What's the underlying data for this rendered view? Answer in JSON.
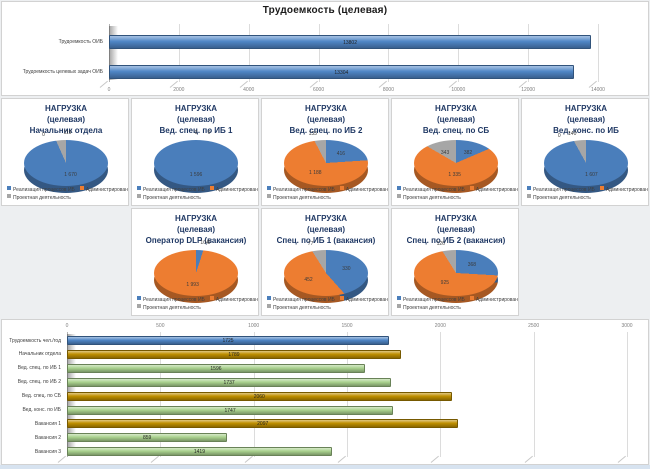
{
  "chart_data": [
    {
      "id": "target-labor",
      "type": "bar",
      "orientation": "horizontal",
      "title": "Трудоемкость (целевая)",
      "categories": [
        "Трудоемкость ОИБ",
        "Трудоемкость целевых задач ОИБ"
      ],
      "values": [
        13802,
        13304
      ],
      "xlim": [
        0,
        14000
      ],
      "xticks": [
        0,
        2000,
        4000,
        6000,
        8000,
        10000,
        12000,
        14000
      ],
      "bar_color": "#4f86c6",
      "grid": true,
      "legend_position": "none"
    },
    {
      "id": "workload-pies",
      "type": "pie",
      "heading_line1": "НАГРУЗКА",
      "heading_line2": "(целевая)",
      "legend": [
        "Реализация процессов ИБ",
        "Администрирование СЗИ",
        "Проектная деятельность"
      ],
      "slice_colors": [
        "#4a7ebb",
        "#ed7d31",
        "#a6a6a6"
      ],
      "legend_position": "bottom",
      "pies": [
        {
          "name": "Начальник отдела",
          "row": 0,
          "col": 0,
          "values": [
            1670,
            0,
            119
          ]
        },
        {
          "name": "Вед. спец. по ИБ 1",
          "row": 0,
          "col": 1,
          "values": [
            1596,
            0,
            0
          ]
        },
        {
          "name": "Вед. спец. по ИБ 2",
          "row": 0,
          "col": 2,
          "values": [
            416,
            1188,
            133
          ]
        },
        {
          "name": "Вед. спец. по СБ",
          "row": 0,
          "col": 3,
          "values": [
            382,
            1335,
            343
          ]
        },
        {
          "name": "Вед. конс. по ИБ",
          "row": 0,
          "col": 4,
          "values": [
            1607,
            0,
            140
          ]
        },
        {
          "name": "Оператор DLP (вакансия)",
          "row": 1,
          "col": 1,
          "values": [
            104,
            1993,
            0
          ]
        },
        {
          "name": "Спец. по ИБ 1 (вакансия)",
          "row": 1,
          "col": 2,
          "values": [
            330,
            452,
            77
          ]
        },
        {
          "name": "Спец. по ИБ 2 (вакансия)",
          "row": 1,
          "col": 3,
          "values": [
            368,
            925,
            126
          ]
        }
      ]
    },
    {
      "id": "staff-load",
      "type": "bar",
      "orientation": "horizontal",
      "title": "",
      "categories": [
        "Трудоемкость чел./год",
        "Начальник отдела",
        "Вед. спец. по ИБ 1",
        "Вед. спец. по ИБ 2",
        "Вед. спец. по СБ",
        "Вед. конс. по ИБ",
        "Вакансия 1",
        "Вакансия 2",
        "Вакансия 3"
      ],
      "values": [
        1725,
        1789,
        1596,
        1737,
        2060,
        1747,
        2097,
        859,
        1419
      ],
      "bar_colors": [
        "#4f86c6",
        "#bf8f00",
        "#a9d18e",
        "#a9d18e",
        "#bf8f00",
        "#a9d18e",
        "#bf8f00",
        "#a9d18e",
        "#a9d18e"
      ],
      "xlim": [
        0,
        3000
      ],
      "xticks": [
        0,
        500,
        1000,
        1500,
        2000,
        2500,
        3000
      ],
      "grid": true,
      "legend_position": "none"
    }
  ]
}
